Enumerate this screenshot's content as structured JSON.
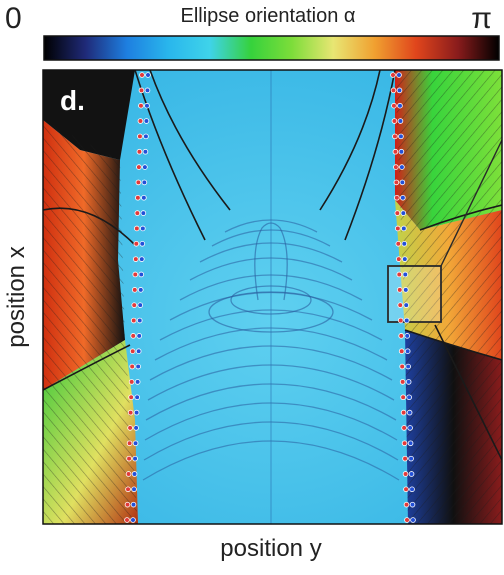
{
  "colorbar": {
    "title": "Ellipse orientation α",
    "min_label": "0",
    "max_label": "π",
    "stops": [
      "#000000",
      "#1f2a78",
      "#1e7fe0",
      "#29b6ec",
      "#3fd3ea",
      "#36d23c",
      "#7ddd3a",
      "#e8e673",
      "#f0a030",
      "#e0451c",
      "#8a1c1c",
      "#000000"
    ]
  },
  "panel": {
    "label": "d.",
    "x_axis_label": "position y",
    "y_axis_label": "position x"
  },
  "colors": {
    "background_field": "#4bc3ea",
    "contour": "#1b3f6b",
    "marker_positive": "#e23a3a",
    "marker_negative": "#2250d8",
    "inset_box": "#2a2a2a"
  }
}
